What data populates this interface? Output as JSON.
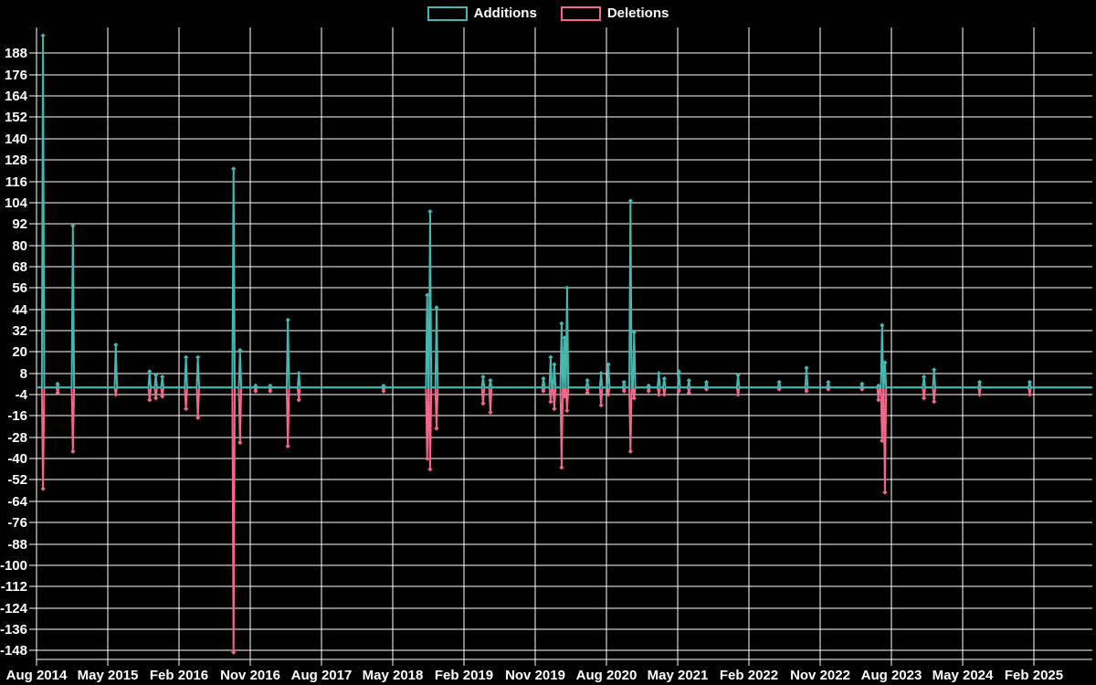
{
  "legend": {
    "additions_label": "Additions",
    "deletions_label": "Deletions"
  },
  "colors": {
    "background": "#000000",
    "grid": "#ffffff",
    "text": "#ffffff",
    "additions": "#45b6b0",
    "deletions": "#f1688c"
  },
  "chart_data": {
    "type": "line",
    "title": "",
    "xlabel": "",
    "ylabel": "",
    "legend_position": "top-center",
    "grid": true,
    "x_axis": {
      "start_date": "2014-08-01",
      "end_date": "2025-02-01",
      "tick_labels": [
        "Aug 2014",
        "May 2015",
        "Feb 2016",
        "Nov 2016",
        "Aug 2017",
        "May 2018",
        "Feb 2019",
        "Nov 2019",
        "Aug 2020",
        "May 2021",
        "Feb 2022",
        "Nov 2022",
        "Aug 2023",
        "May 2024",
        "Feb 2025"
      ]
    },
    "y_axis": {
      "tick_values": [
        188,
        176,
        164,
        152,
        140,
        128,
        116,
        104,
        92,
        80,
        68,
        56,
        44,
        32,
        20,
        8,
        -4,
        -16,
        -28,
        -40,
        -52,
        -64,
        -76,
        -88,
        -100,
        -112,
        -124,
        -136,
        -148
      ],
      "ylim": [
        -153,
        202.6
      ]
    },
    "series": [
      {
        "name": "Additions",
        "color_key": "additions",
        "baseline": 0
      },
      {
        "name": "Deletions",
        "color_key": "deletions",
        "baseline": 0
      }
    ],
    "points_format": [
      "date",
      "additions",
      "deletions"
    ],
    "points": [
      [
        "2014-08-26",
        198,
        -57
      ],
      [
        "2014-10-21",
        2,
        -3
      ],
      [
        "2014-12-19",
        91,
        -36
      ],
      [
        "2015-06-02",
        24,
        -4
      ],
      [
        "2015-10-10",
        9,
        -7
      ],
      [
        "2015-11-03",
        7,
        -6
      ],
      [
        "2015-11-28",
        6,
        -5
      ],
      [
        "2016-02-27",
        17,
        -12
      ],
      [
        "2016-04-13",
        17,
        -17
      ],
      [
        "2016-08-28",
        123,
        -149
      ],
      [
        "2016-09-22",
        21,
        -31
      ],
      [
        "2016-11-21",
        1,
        -2
      ],
      [
        "2017-01-16",
        1,
        -2
      ],
      [
        "2017-03-25",
        38,
        -33
      ],
      [
        "2017-05-06",
        8,
        -7
      ],
      [
        "2018-03-28",
        1,
        -2
      ],
      [
        "2018-09-12",
        52,
        -40
      ],
      [
        "2018-09-23",
        99,
        -46
      ],
      [
        "2018-10-18",
        45,
        -23
      ],
      [
        "2019-04-15",
        6,
        -9
      ],
      [
        "2019-05-13",
        4,
        -14
      ],
      [
        "2019-12-03",
        5,
        -2
      ],
      [
        "2019-12-31",
        17,
        -8
      ],
      [
        "2020-01-14",
        13,
        -12
      ],
      [
        "2020-02-11",
        36,
        -45
      ],
      [
        "2020-02-22",
        28,
        -5
      ],
      [
        "2020-03-03",
        56,
        -13
      ],
      [
        "2020-05-20",
        4,
        -3
      ],
      [
        "2020-07-12",
        8,
        -10
      ],
      [
        "2020-08-09",
        13,
        -4
      ],
      [
        "2020-10-08",
        3,
        -2
      ],
      [
        "2020-11-02",
        105,
        -36
      ],
      [
        "2020-11-16",
        31,
        -6
      ],
      [
        "2021-01-11",
        1,
        -2
      ],
      [
        "2021-02-19",
        8,
        -4
      ],
      [
        "2021-03-12",
        5,
        -4
      ],
      [
        "2021-05-07",
        9,
        -2
      ],
      [
        "2021-06-15",
        4,
        -3
      ],
      [
        "2021-08-21",
        3,
        -1
      ],
      [
        "2021-12-21",
        7,
        -4
      ],
      [
        "2022-05-28",
        3,
        -1
      ],
      [
        "2022-09-10",
        11,
        -2
      ],
      [
        "2022-12-03",
        3,
        -1
      ],
      [
        "2023-04-12",
        2,
        -1
      ],
      [
        "2023-06-14",
        1,
        -7
      ],
      [
        "2023-06-28",
        35,
        -30
      ],
      [
        "2023-07-09",
        14,
        -59
      ],
      [
        "2023-12-06",
        6,
        -6
      ],
      [
        "2024-01-14",
        10,
        -8
      ],
      [
        "2024-07-07",
        3,
        -4
      ],
      [
        "2025-01-16",
        3,
        -4
      ]
    ]
  }
}
